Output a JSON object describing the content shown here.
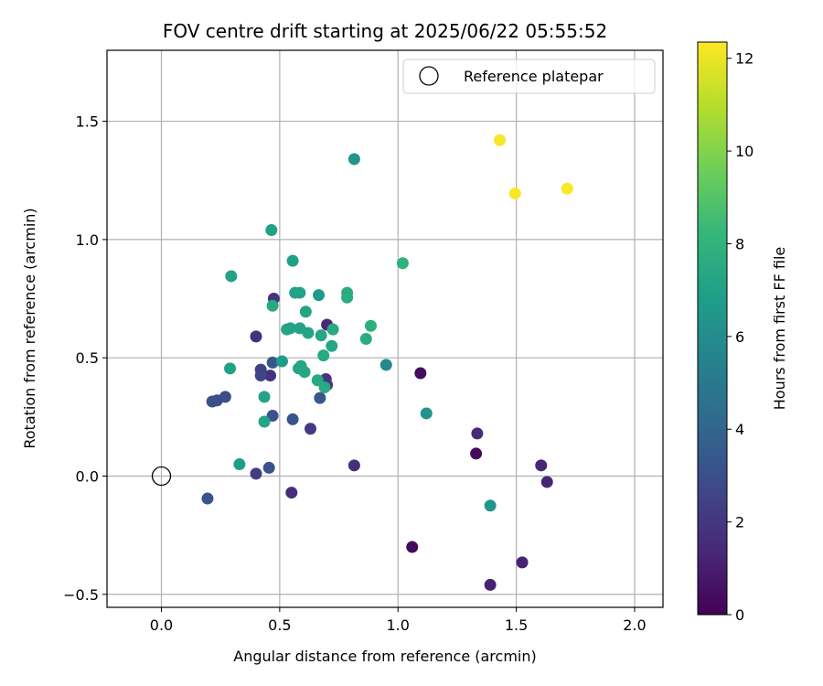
{
  "chart_data": {
    "type": "scatter",
    "title": "FOV centre drift starting at 2025/06/22 05:55:52",
    "xlabel": "Angular distance from reference (arcmin)",
    "ylabel": "Rotation from reference (arcmin)",
    "xlim": [
      -0.23,
      2.12
    ],
    "ylim": [
      -0.555,
      1.8
    ],
    "xticks": [
      0.0,
      0.5,
      1.0,
      1.5,
      2.0
    ],
    "xtick_labels": [
      "0.0",
      "0.5",
      "1.0",
      "1.5",
      "2.0"
    ],
    "yticks": [
      -0.5,
      0.0,
      0.5,
      1.0,
      1.5
    ],
    "ytick_labels": [
      "−0.5",
      "0.0",
      "0.5",
      "1.0",
      "1.5"
    ],
    "grid": true,
    "legend": {
      "placement": "top-right",
      "entries": [
        "Reference platepar"
      ]
    },
    "reference_point": {
      "x": 0.0,
      "y": 0.0
    },
    "colorbar": {
      "label": "Hours from first FF file",
      "colormap": "viridis",
      "range": [
        0,
        12.35
      ],
      "ticks": [
        0,
        2,
        4,
        6,
        8,
        10,
        12
      ],
      "tick_labels": [
        "0",
        "2",
        "4",
        "6",
        "8",
        "10",
        "12"
      ]
    },
    "points": [
      {
        "x": 1.06,
        "y": -0.3,
        "c": 0.3
      },
      {
        "x": 1.33,
        "y": 0.095,
        "c": 0.3
      },
      {
        "x": 1.095,
        "y": 0.435,
        "c": 0.4
      },
      {
        "x": 1.39,
        "y": -0.46,
        "c": 1.2
      },
      {
        "x": 1.525,
        "y": -0.365,
        "c": 1.2
      },
      {
        "x": 1.605,
        "y": 0.045,
        "c": 1.3
      },
      {
        "x": 1.63,
        "y": -0.025,
        "c": 1.3
      },
      {
        "x": 1.335,
        "y": 0.18,
        "c": 1.5
      },
      {
        "x": 0.55,
        "y": -0.07,
        "c": 1.6
      },
      {
        "x": 0.815,
        "y": 0.045,
        "c": 1.7
      },
      {
        "x": 0.7,
        "y": 0.64,
        "c": 1.4
      },
      {
        "x": 0.4,
        "y": 0.59,
        "c": 1.8
      },
      {
        "x": 0.475,
        "y": 0.75,
        "c": 1.9
      },
      {
        "x": 0.46,
        "y": 0.425,
        "c": 1.8
      },
      {
        "x": 0.7,
        "y": 0.385,
        "c": 1.9
      },
      {
        "x": 0.695,
        "y": 0.41,
        "c": 1.9
      },
      {
        "x": 0.63,
        "y": 0.2,
        "c": 2.1
      },
      {
        "x": 0.4,
        "y": 0.01,
        "c": 2.3
      },
      {
        "x": 0.42,
        "y": 0.45,
        "c": 2.4
      },
      {
        "x": 0.42,
        "y": 0.425,
        "c": 2.6
      },
      {
        "x": 0.27,
        "y": 0.335,
        "c": 2.9
      },
      {
        "x": 0.235,
        "y": 0.32,
        "c": 3.0
      },
      {
        "x": 0.215,
        "y": 0.315,
        "c": 3.1
      },
      {
        "x": 0.455,
        "y": 0.035,
        "c": 3.1
      },
      {
        "x": 0.47,
        "y": 0.48,
        "c": 3.3
      },
      {
        "x": 0.47,
        "y": 0.255,
        "c": 3.2
      },
      {
        "x": 0.555,
        "y": 0.24,
        "c": 3.2
      },
      {
        "x": 0.67,
        "y": 0.33,
        "c": 3.3
      },
      {
        "x": 0.195,
        "y": -0.095,
        "c": 3.2
      },
      {
        "x": 0.95,
        "y": 0.47,
        "c": 5.8
      },
      {
        "x": 0.815,
        "y": 1.34,
        "c": 6.4
      },
      {
        "x": 1.12,
        "y": 0.265,
        "c": 6.4
      },
      {
        "x": 1.39,
        "y": -0.125,
        "c": 6.5
      },
      {
        "x": 0.665,
        "y": 0.765,
        "c": 6.6
      },
      {
        "x": 0.555,
        "y": 0.91,
        "c": 6.9
      },
      {
        "x": 0.51,
        "y": 0.485,
        "c": 6.8
      },
      {
        "x": 0.33,
        "y": 0.05,
        "c": 6.8
      },
      {
        "x": 0.465,
        "y": 1.04,
        "c": 7.0
      },
      {
        "x": 0.565,
        "y": 0.775,
        "c": 7.0
      },
      {
        "x": 0.585,
        "y": 0.775,
        "c": 7.1
      },
      {
        "x": 0.295,
        "y": 0.845,
        "c": 7.1
      },
      {
        "x": 0.29,
        "y": 0.455,
        "c": 7.0
      },
      {
        "x": 0.435,
        "y": 0.335,
        "c": 7.1
      },
      {
        "x": 0.435,
        "y": 0.23,
        "c": 7.2
      },
      {
        "x": 0.47,
        "y": 0.72,
        "c": 7.4
      },
      {
        "x": 0.53,
        "y": 0.62,
        "c": 7.3
      },
      {
        "x": 0.545,
        "y": 0.625,
        "c": 7.2
      },
      {
        "x": 0.585,
        "y": 0.625,
        "c": 7.1
      },
      {
        "x": 0.61,
        "y": 0.695,
        "c": 7.2
      },
      {
        "x": 0.62,
        "y": 0.605,
        "c": 7.2
      },
      {
        "x": 0.675,
        "y": 0.595,
        "c": 7.3
      },
      {
        "x": 0.725,
        "y": 0.62,
        "c": 7.4
      },
      {
        "x": 0.72,
        "y": 0.55,
        "c": 7.3
      },
      {
        "x": 0.685,
        "y": 0.51,
        "c": 7.4
      },
      {
        "x": 0.58,
        "y": 0.455,
        "c": 7.2
      },
      {
        "x": 0.59,
        "y": 0.465,
        "c": 7.3
      },
      {
        "x": 0.605,
        "y": 0.44,
        "c": 7.3
      },
      {
        "x": 0.66,
        "y": 0.405,
        "c": 7.4
      },
      {
        "x": 0.69,
        "y": 0.375,
        "c": 7.5
      },
      {
        "x": 0.785,
        "y": 0.775,
        "c": 7.6
      },
      {
        "x": 0.785,
        "y": 0.755,
        "c": 7.6
      },
      {
        "x": 0.865,
        "y": 0.58,
        "c": 7.7
      },
      {
        "x": 0.885,
        "y": 0.635,
        "c": 7.8
      },
      {
        "x": 1.02,
        "y": 0.9,
        "c": 7.9
      },
      {
        "x": 1.43,
        "y": 1.42,
        "c": 12.2
      },
      {
        "x": 1.495,
        "y": 1.195,
        "c": 12.3
      },
      {
        "x": 1.715,
        "y": 1.215,
        "c": 12.3
      }
    ]
  },
  "colors": {
    "grid": "#b0b0b0",
    "axes": "#000000",
    "viridis": [
      "#440154",
      "#482878",
      "#3e4989",
      "#31688e",
      "#26828e",
      "#1f9e89",
      "#35b779",
      "#6ece58",
      "#b5de2b",
      "#fde725"
    ]
  }
}
